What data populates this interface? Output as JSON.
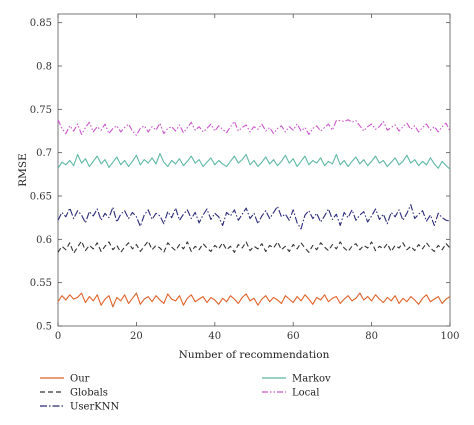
{
  "chart_data": {
    "type": "line",
    "xlabel": "Number of recommendation",
    "ylabel": "RMSE",
    "xlim": [
      0,
      100
    ],
    "ylim": [
      0.5,
      0.86
    ],
    "xticks": [
      "0",
      "20",
      "40",
      "60",
      "80",
      "100"
    ],
    "yticks": [
      "0.5",
      "0.55",
      "0.6",
      "0.65",
      "0.7",
      "0.75",
      "0.8",
      "0.85"
    ],
    "grid": false,
    "legend_position": "bottom",
    "x": [
      0,
      1,
      2,
      3,
      4,
      5,
      6,
      7,
      8,
      9,
      10,
      11,
      12,
      13,
      14,
      15,
      16,
      17,
      18,
      19,
      20,
      21,
      22,
      23,
      24,
      25,
      26,
      27,
      28,
      29,
      30,
      31,
      32,
      33,
      34,
      35,
      36,
      37,
      38,
      39,
      40,
      41,
      42,
      43,
      44,
      45,
      46,
      47,
      48,
      49,
      50,
      51,
      52,
      53,
      54,
      55,
      56,
      57,
      58,
      59,
      60,
      61,
      62,
      63,
      64,
      65,
      66,
      67,
      68,
      69,
      70,
      71,
      72,
      73,
      74,
      75,
      76,
      77,
      78,
      79,
      80,
      81,
      82,
      83,
      84,
      85,
      86,
      87,
      88,
      89,
      90,
      91,
      92,
      93,
      94,
      95,
      96,
      97,
      98,
      99,
      100
    ],
    "series": [
      {
        "name": "Our",
        "color": "#e0622a",
        "dash": "solid",
        "values": [
          0.528,
          0.535,
          0.53,
          0.536,
          0.531,
          0.533,
          0.538,
          0.527,
          0.534,
          0.529,
          0.536,
          0.524,
          0.531,
          0.535,
          0.522,
          0.533,
          0.529,
          0.536,
          0.526,
          0.532,
          0.538,
          0.525,
          0.531,
          0.534,
          0.528,
          0.535,
          0.53,
          0.526,
          0.537,
          0.531,
          0.529,
          0.535,
          0.524,
          0.532,
          0.536,
          0.528,
          0.531,
          0.534,
          0.527,
          0.533,
          0.53,
          0.525,
          0.532,
          0.528,
          0.535,
          0.531,
          0.526,
          0.533,
          0.537,
          0.529,
          0.532,
          0.524,
          0.531,
          0.535,
          0.528,
          0.533,
          0.53,
          0.526,
          0.535,
          0.531,
          0.527,
          0.534,
          0.529,
          0.536,
          0.531,
          0.525,
          0.533,
          0.53,
          0.536,
          0.528,
          0.532,
          0.534,
          0.526,
          0.531,
          0.535,
          0.529,
          0.532,
          0.538,
          0.53,
          0.534,
          0.529,
          0.536,
          0.531,
          0.527,
          0.533,
          0.529,
          0.535,
          0.526,
          0.532,
          0.528,
          0.534,
          0.53,
          0.525,
          0.532,
          0.536,
          0.528,
          0.531,
          0.534,
          0.526,
          0.531,
          0.534
        ]
      },
      {
        "name": "Globals",
        "color": "#333333",
        "dash": "dashed",
        "values": [
          0.585,
          0.592,
          0.588,
          0.596,
          0.584,
          0.591,
          0.598,
          0.587,
          0.593,
          0.589,
          0.596,
          0.586,
          0.592,
          0.597,
          0.588,
          0.593,
          0.585,
          0.591,
          0.596,
          0.589,
          0.594,
          0.586,
          0.592,
          0.598,
          0.588,
          0.593,
          0.59,
          0.585,
          0.596,
          0.591,
          0.587,
          0.594,
          0.589,
          0.597,
          0.586,
          0.592,
          0.588,
          0.595,
          0.59,
          0.586,
          0.593,
          0.589,
          0.596,
          0.588,
          0.592,
          0.585,
          0.594,
          0.59,
          0.597,
          0.587,
          0.592,
          0.589,
          0.595,
          0.586,
          0.593,
          0.59,
          0.597,
          0.588,
          0.592,
          0.586,
          0.594,
          0.589,
          0.596,
          0.59,
          0.585,
          0.593,
          0.588,
          0.596,
          0.591,
          0.587,
          0.594,
          0.589,
          0.597,
          0.59,
          0.586,
          0.592,
          0.595,
          0.588,
          0.593,
          0.59,
          0.597,
          0.587,
          0.592,
          0.589,
          0.595,
          0.586,
          0.593,
          0.59,
          0.596,
          0.588,
          0.592,
          0.587,
          0.594,
          0.589,
          0.596,
          0.59,
          0.586,
          0.593,
          0.588,
          0.595,
          0.59
        ]
      },
      {
        "name": "UserKNN",
        "color": "#2a2a7a",
        "dash": "dashdot",
        "values": [
          0.622,
          0.631,
          0.626,
          0.636,
          0.624,
          0.633,
          0.628,
          0.619,
          0.632,
          0.627,
          0.635,
          0.622,
          0.63,
          0.625,
          0.637,
          0.62,
          0.629,
          0.633,
          0.624,
          0.631,
          0.626,
          0.615,
          0.628,
          0.634,
          0.623,
          0.63,
          0.627,
          0.618,
          0.632,
          0.625,
          0.636,
          0.622,
          0.629,
          0.634,
          0.624,
          0.631,
          0.619,
          0.628,
          0.635,
          0.623,
          0.63,
          0.626,
          0.616,
          0.631,
          0.627,
          0.634,
          0.622,
          0.629,
          0.636,
          0.624,
          0.63,
          0.618,
          0.627,
          0.633,
          0.624,
          0.631,
          0.638,
          0.626,
          0.629,
          0.622,
          0.634,
          0.619,
          0.612,
          0.628,
          0.633,
          0.624,
          0.63,
          0.62,
          0.627,
          0.635,
          0.623,
          0.629,
          0.616,
          0.631,
          0.625,
          0.634,
          0.622,
          0.628,
          0.632,
          0.62,
          0.627,
          0.635,
          0.623,
          0.629,
          0.618,
          0.631,
          0.626,
          0.634,
          0.622,
          0.63,
          0.64,
          0.624,
          0.629,
          0.633,
          0.621,
          0.628,
          0.616,
          0.63,
          0.625,
          0.622,
          0.621
        ]
      },
      {
        "name": "Markov",
        "color": "#5fb8a5",
        "dash": "solid",
        "values": [
          0.682,
          0.689,
          0.686,
          0.691,
          0.685,
          0.698,
          0.688,
          0.693,
          0.684,
          0.69,
          0.696,
          0.687,
          0.692,
          0.683,
          0.689,
          0.695,
          0.686,
          0.691,
          0.684,
          0.69,
          0.697,
          0.686,
          0.692,
          0.688,
          0.694,
          0.687,
          0.699,
          0.689,
          0.684,
          0.691,
          0.687,
          0.693,
          0.685,
          0.69,
          0.696,
          0.688,
          0.692,
          0.684,
          0.689,
          0.694,
          0.686,
          0.691,
          0.687,
          0.684,
          0.69,
          0.696,
          0.688,
          0.692,
          0.698,
          0.686,
          0.691,
          0.684,
          0.689,
          0.695,
          0.687,
          0.692,
          0.685,
          0.69,
          0.697,
          0.688,
          0.693,
          0.684,
          0.69,
          0.696,
          0.686,
          0.691,
          0.688,
          0.694,
          0.685,
          0.69,
          0.687,
          0.698,
          0.686,
          0.691,
          0.684,
          0.69,
          0.695,
          0.687,
          0.692,
          0.685,
          0.69,
          0.696,
          0.688,
          0.691,
          0.684,
          0.689,
          0.694,
          0.686,
          0.69,
          0.697,
          0.688,
          0.692,
          0.685,
          0.69,
          0.686,
          0.694,
          0.687,
          0.682,
          0.69,
          0.685,
          0.681
        ]
      },
      {
        "name": "Local",
        "color": "#cc55cc",
        "dash": "dashdotdot",
        "values": [
          0.738,
          0.728,
          0.722,
          0.731,
          0.725,
          0.733,
          0.721,
          0.729,
          0.735,
          0.724,
          0.73,
          0.726,
          0.733,
          0.722,
          0.728,
          0.731,
          0.724,
          0.729,
          0.733,
          0.725,
          0.72,
          0.728,
          0.731,
          0.724,
          0.73,
          0.726,
          0.734,
          0.722,
          0.728,
          0.73,
          0.725,
          0.732,
          0.723,
          0.729,
          0.735,
          0.726,
          0.73,
          0.724,
          0.728,
          0.733,
          0.725,
          0.731,
          0.727,
          0.723,
          0.73,
          0.736,
          0.725,
          0.729,
          0.732,
          0.724,
          0.73,
          0.727,
          0.733,
          0.725,
          0.729,
          0.722,
          0.728,
          0.731,
          0.724,
          0.73,
          0.726,
          0.733,
          0.725,
          0.729,
          0.721,
          0.728,
          0.731,
          0.725,
          0.729,
          0.733,
          0.726,
          0.737,
          0.737,
          0.736,
          0.738,
          0.735,
          0.737,
          0.731,
          0.725,
          0.73,
          0.733,
          0.727,
          0.73,
          0.736,
          0.726,
          0.729,
          0.732,
          0.725,
          0.73,
          0.734,
          0.727,
          0.731,
          0.724,
          0.729,
          0.733,
          0.726,
          0.73,
          0.724,
          0.73,
          0.734,
          0.725
        ]
      }
    ]
  }
}
